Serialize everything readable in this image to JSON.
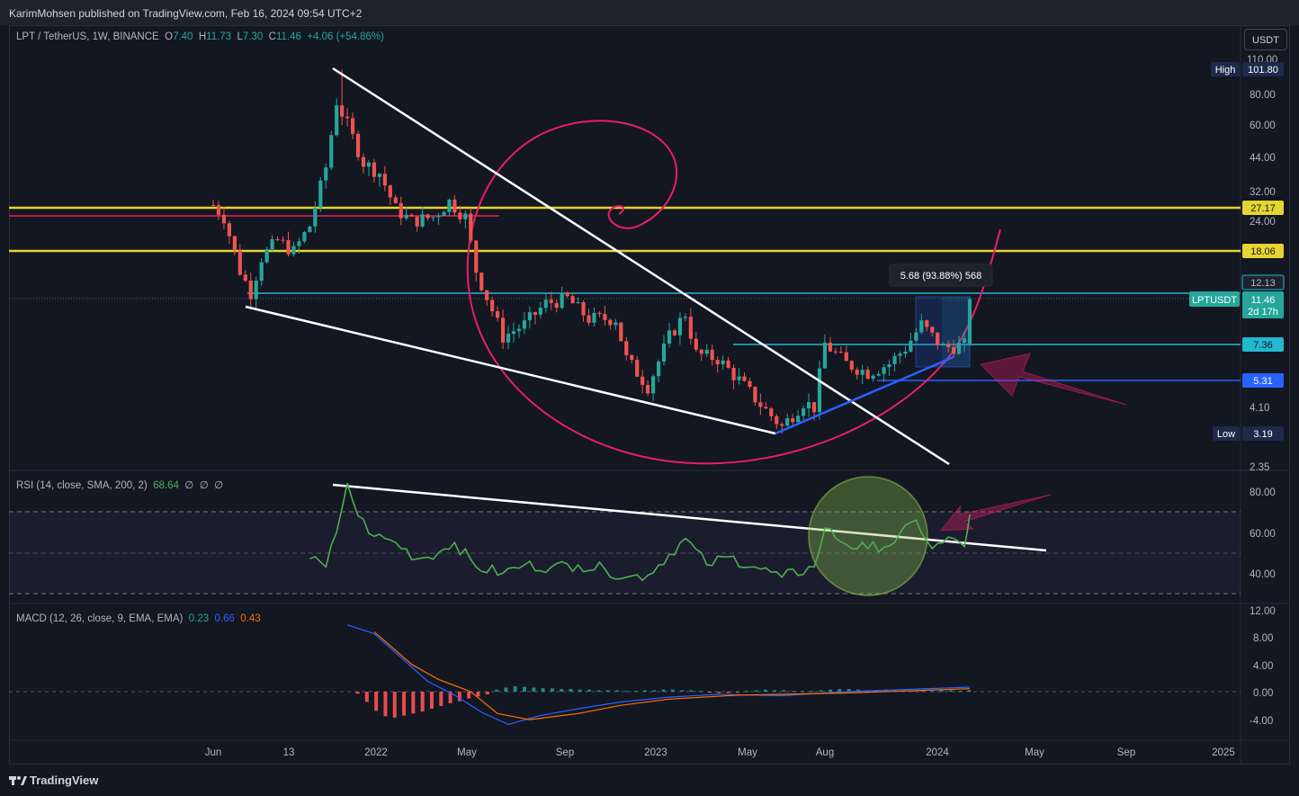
{
  "header": {
    "published": "KarimMohsen published on TradingView.com, Feb 16, 2024 09:54 UTC+2"
  },
  "main_legend": {
    "symbol": "LPT / TetherUS, 1W, BINANCE",
    "o_label": "O",
    "o": "7.40",
    "h_label": "H",
    "h": "11.73",
    "l_label": "L",
    "l": "7.30",
    "c_label": "C",
    "c": "11.46",
    "change": "+4.06 (+54.86%)"
  },
  "currency_button": "USDT",
  "price_scale_ticks": [
    "110.00",
    "80.00",
    "60.00",
    "44.00",
    "32.00",
    "24.00",
    "4.10",
    "2.35"
  ],
  "price_labels": {
    "high_tag": "High",
    "high": "101.80",
    "yellow_top": "27.17",
    "yellow_mid": "18.06",
    "cyan_top": "12.13",
    "symbol_tag": "LPTUSDT",
    "last": "11.46",
    "countdown": "2d 17h",
    "cyan_mid": "7.36",
    "blue_level": "5.31",
    "low_tag": "Low",
    "low": "3.19"
  },
  "measure_label": "5.68 (93.88%) 568",
  "rsi_legend": {
    "title": "RSI (14, close, SMA, 200, 2)",
    "value": "68.64",
    "n1": "∅",
    "n2": "∅",
    "n3": "∅"
  },
  "rsi_ticks": [
    "80.00",
    "60.00",
    "40.00"
  ],
  "macd_legend": {
    "title": "MACD (12, 26, close, 9, EMA, EMA)",
    "hist": "0.23",
    "macd": "0.66",
    "signal": "0.43"
  },
  "macd_ticks": [
    "12.00",
    "8.00",
    "4.00",
    "0.00",
    "-4.00"
  ],
  "time_ticks": [
    "Jun",
    "13",
    "2022",
    "May",
    "Sep",
    "2023",
    "May",
    "Aug",
    "2024",
    "May",
    "Sep",
    "2025"
  ],
  "footer_brand": "TradingView",
  "colors": {
    "bg": "#131722",
    "up": "#26a69a",
    "down": "#ef5350",
    "yellow": "#e6d432",
    "cyan": "#22b8cf",
    "blue": "#2962ff",
    "pink": "#e91e63",
    "rsi": "#4caf50"
  },
  "chart_data": [
    {
      "type": "candlestick",
      "title": "LPT / TetherUS, 1W, BINANCE",
      "scale": "log",
      "ylim": [
        2.35,
        110
      ],
      "x_range": [
        "2021-06",
        "2025-02"
      ],
      "close_path": [
        {
          "x": "2021-06-01",
          "y": 28
        },
        {
          "x": "2021-06-15",
          "y": 25
        },
        {
          "x": "2021-07-06",
          "y": 15
        },
        {
          "x": "2021-07-20",
          "y": 12.2
        },
        {
          "x": "2021-08-03",
          "y": 17
        },
        {
          "x": "2021-08-24",
          "y": 20
        },
        {
          "x": "2021-09-14",
          "y": 18
        },
        {
          "x": "2021-10-05",
          "y": 23
        },
        {
          "x": "2021-10-26",
          "y": 40
        },
        {
          "x": "2021-11-09",
          "y": 75
        },
        {
          "x": "2021-11-23",
          "y": 60
        },
        {
          "x": "2021-12-14",
          "y": 42
        },
        {
          "x": "2022-01-04",
          "y": 38
        },
        {
          "x": "2022-01-25",
          "y": 27
        },
        {
          "x": "2022-02-15",
          "y": 24
        },
        {
          "x": "2022-03-15",
          "y": 25
        },
        {
          "x": "2022-04-05",
          "y": 29
        },
        {
          "x": "2022-04-26",
          "y": 25
        },
        {
          "x": "2022-05-10",
          "y": 15
        },
        {
          "x": "2022-06-14",
          "y": 8
        },
        {
          "x": "2022-07-12",
          "y": 9
        },
        {
          "x": "2022-08-09",
          "y": 11
        },
        {
          "x": "2022-09-06",
          "y": 11.5
        },
        {
          "x": "2022-10-04",
          "y": 9.5
        },
        {
          "x": "2022-11-08",
          "y": 9.5
        },
        {
          "x": "2022-11-22",
          "y": 6.5
        },
        {
          "x": "2022-12-20",
          "y": 5
        },
        {
          "x": "2023-01-17",
          "y": 8
        },
        {
          "x": "2023-02-07",
          "y": 10
        },
        {
          "x": "2023-02-21",
          "y": 6.8
        },
        {
          "x": "2023-03-21",
          "y": 6.5
        },
        {
          "x": "2023-04-18",
          "y": 5.3
        },
        {
          "x": "2023-05-16",
          "y": 4.2
        },
        {
          "x": "2023-06-13",
          "y": 3.4
        },
        {
          "x": "2023-07-11",
          "y": 4.3
        },
        {
          "x": "2023-07-25",
          "y": 4.1
        },
        {
          "x": "2023-08-08",
          "y": 7.5
        },
        {
          "x": "2023-09-05",
          "y": 6.2
        },
        {
          "x": "2023-10-03",
          "y": 5.7
        },
        {
          "x": "2023-10-31",
          "y": 6.2
        },
        {
          "x": "2023-11-21",
          "y": 7.2
        },
        {
          "x": "2023-12-12",
          "y": 9
        },
        {
          "x": "2024-01-09",
          "y": 7.2
        },
        {
          "x": "2024-02-06",
          "y": 7.4
        },
        {
          "x": "2024-02-13",
          "y": 11.46
        }
      ],
      "levels": {
        "high": 101.8,
        "yellow_1": 27.17,
        "yellow_2": 18.06,
        "cyan_1": 12.13,
        "last": 11.46,
        "cyan_2": 7.36,
        "blue": 5.31,
        "low": 3.19
      }
    },
    {
      "type": "line",
      "title": "RSI (14, close, SMA, 200, 2)",
      "ylim": [
        30,
        90
      ],
      "band": [
        30,
        70
      ],
      "series": [
        {
          "name": "RSI",
          "values": [
            {
              "x": "2021-10-05",
              "y": 47
            },
            {
              "x": "2021-10-26",
              "y": 43
            },
            {
              "x": "2021-11-09",
              "y": 60
            },
            {
              "x": "2021-11-23",
              "y": 84
            },
            {
              "x": "2021-12-07",
              "y": 68
            },
            {
              "x": "2021-12-28",
              "y": 58
            },
            {
              "x": "2022-01-25",
              "y": 55
            },
            {
              "x": "2022-02-22",
              "y": 47
            },
            {
              "x": "2022-03-22",
              "y": 50
            },
            {
              "x": "2022-04-12",
              "y": 55
            },
            {
              "x": "2022-05-10",
              "y": 43
            },
            {
              "x": "2022-06-14",
              "y": 40
            },
            {
              "x": "2022-07-12",
              "y": 44
            },
            {
              "x": "2022-08-16",
              "y": 43
            },
            {
              "x": "2022-09-20",
              "y": 44
            },
            {
              "x": "2022-10-25",
              "y": 42
            },
            {
              "x": "2022-11-22",
              "y": 38
            },
            {
              "x": "2022-12-20",
              "y": 39
            },
            {
              "x": "2023-02-07",
              "y": 57
            },
            {
              "x": "2023-03-07",
              "y": 44
            },
            {
              "x": "2023-04-04",
              "y": 48
            },
            {
              "x": "2023-05-16",
              "y": 42
            },
            {
              "x": "2023-06-13",
              "y": 38
            },
            {
              "x": "2023-07-25",
              "y": 43
            },
            {
              "x": "2023-08-08",
              "y": 62
            },
            {
              "x": "2023-09-05",
              "y": 54
            },
            {
              "x": "2023-10-03",
              "y": 52
            },
            {
              "x": "2023-11-07",
              "y": 55
            },
            {
              "x": "2023-12-05",
              "y": 66
            },
            {
              "x": "2023-12-26",
              "y": 52
            },
            {
              "x": "2024-01-23",
              "y": 57
            },
            {
              "x": "2024-02-06",
              "y": 53
            },
            {
              "x": "2024-02-13",
              "y": 68.64
            }
          ]
        }
      ]
    },
    {
      "type": "macd",
      "title": "MACD (12, 26, close, 9, EMA, EMA)",
      "ylim": [
        -6,
        12.5
      ],
      "series": [
        {
          "name": "MACD",
          "values": [
            {
              "x": "2021-11-23",
              "y": 9.8
            },
            {
              "x": "2021-12-28",
              "y": 8.5
            },
            {
              "x": "2022-02-01",
              "y": 5
            },
            {
              "x": "2022-03-08",
              "y": 1.5
            },
            {
              "x": "2022-04-12",
              "y": -0.5
            },
            {
              "x": "2022-05-17",
              "y": -3
            },
            {
              "x": "2022-06-21",
              "y": -4.8
            },
            {
              "x": "2022-08-02",
              "y": -3.5
            },
            {
              "x": "2022-09-20",
              "y": -2.5
            },
            {
              "x": "2022-11-15",
              "y": -1.5
            },
            {
              "x": "2023-01-17",
              "y": -0.8
            },
            {
              "x": "2023-03-21",
              "y": -0.4
            },
            {
              "x": "2023-06-13",
              "y": -0.6
            },
            {
              "x": "2023-09-05",
              "y": 0
            },
            {
              "x": "2024-02-13",
              "y": 0.66
            }
          ]
        },
        {
          "name": "Signal",
          "values": [
            {
              "x": "2021-12-28",
              "y": 8.8
            },
            {
              "x": "2022-02-15",
              "y": 4
            },
            {
              "x": "2022-03-22",
              "y": 1.8
            },
            {
              "x": "2022-05-03",
              "y": 0
            },
            {
              "x": "2022-06-07",
              "y": -3.2
            },
            {
              "x": "2022-07-19",
              "y": -4.1
            },
            {
              "x": "2022-09-20",
              "y": -3.2
            },
            {
              "x": "2022-11-15",
              "y": -2
            },
            {
              "x": "2023-01-17",
              "y": -1.1
            },
            {
              "x": "2023-04-18",
              "y": -0.5
            },
            {
              "x": "2023-09-05",
              "y": -0.2
            },
            {
              "x": "2024-02-13",
              "y": 0.43
            }
          ]
        }
      ],
      "histogram_note": "red bars negative through 2022, green bars small positive since",
      "histogram": [
        -0.3,
        -1.5,
        -2.8,
        -3.6,
        -3.8,
        -3.5,
        -3.2,
        -2.9,
        -2.5,
        -2.1,
        -1.7,
        -1.4,
        -1.0,
        -0.7,
        -0.4,
        0.3,
        0.6,
        0.8,
        0.7,
        0.6,
        0.5,
        0.5,
        0.4,
        0.4,
        0.3,
        0.3,
        0.2,
        0.2,
        0.2,
        0.1,
        0.1,
        0.2,
        0.2,
        0.3,
        0.3,
        0.2,
        0.2,
        0.1,
        -0.1,
        -0.2,
        -0.2,
        -0.1,
        0.1,
        0.2,
        0.3,
        0.2,
        0.2,
        0.1,
        0.1,
        0.1,
        0.2,
        0.3,
        0.4,
        0.4,
        0.3,
        0.2,
        0.2,
        0.3,
        0.3,
        0.2,
        0.2,
        0.1,
        0.1,
        0.2,
        0.2,
        0.1,
        0.23
      ]
    }
  ]
}
